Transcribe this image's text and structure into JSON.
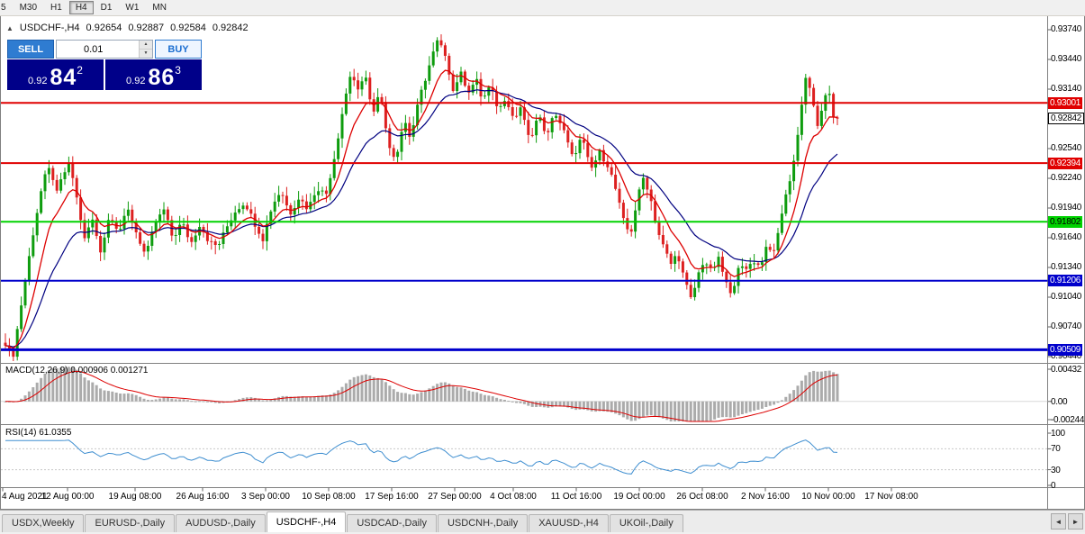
{
  "icons": {
    "collapse_arrow": "▲",
    "spin_up": "▲",
    "spin_down": "▼",
    "tab_prev": "◄",
    "tab_next": "►"
  },
  "toolbar": {
    "periods": [
      {
        "label": "5",
        "active": false
      },
      {
        "label": "M30",
        "active": false
      },
      {
        "label": "H1",
        "active": false
      },
      {
        "label": "H4",
        "active": true
      },
      {
        "label": "D1",
        "active": false
      },
      {
        "label": "W1",
        "active": false
      },
      {
        "label": "MN",
        "active": false
      }
    ]
  },
  "chart": {
    "symbol_period": "USDCHF-,H4",
    "ohlc": {
      "open": "0.92654",
      "high": "0.92887",
      "low": "0.92584",
      "close": "0.92842"
    },
    "current_price": {
      "label": "0.92842",
      "value": 0.92842
    },
    "y_ticks": [
      "0.93740",
      "0.93440",
      "0.93140",
      "0.92840",
      "0.92540",
      "0.92240",
      "0.91940",
      "0.91640",
      "0.91340",
      "0.91040",
      "0.90740",
      "0.90440"
    ],
    "hlines": [
      {
        "label": "0.93001",
        "value": 0.93001,
        "color": "#e00000",
        "text_color": "#ffffff",
        "width": 2
      },
      {
        "label": "0.92394",
        "value": 0.92394,
        "color": "#e00000",
        "text_color": "#ffffff",
        "width": 2
      },
      {
        "label": "0.91802",
        "value": 0.91802,
        "color": "#00d200",
        "text_color": "#000000",
        "width": 2
      },
      {
        "label": "0.91206",
        "value": 0.91206,
        "color": "#0000cc",
        "text_color": "#ffffff",
        "width": 2
      },
      {
        "label": "0.90509",
        "value": 0.90509,
        "color": "#0000cc",
        "text_color": "#ffffff",
        "width": 3
      }
    ],
    "x_labels": [
      "4 Aug 2021",
      "12 Aug 00:00",
      "19 Aug 08:00",
      "26 Aug 16:00",
      "3 Sep 00:00",
      "10 Sep 08:00",
      "17 Sep 16:00",
      "27 Sep 00:00",
      "4 Oct 08:00",
      "11 Oct 16:00",
      "19 Oct 00:00",
      "26 Oct 08:00",
      "2 Nov 16:00",
      "10 Nov 00:00",
      "17 Nov 08:00"
    ]
  },
  "trade": {
    "sell_label": "SELL",
    "buy_label": "BUY",
    "lot": "0.01",
    "sell_price": {
      "prefix": "0.92",
      "big": "84",
      "sup": "2"
    },
    "buy_price": {
      "prefix": "0.92",
      "big": "86",
      "sup": "3"
    }
  },
  "macd": {
    "label": "MACD(12,26,9) 0.000906 0.001271",
    "axis": [
      {
        "label": "0.00432",
        "value": 0.00432
      },
      {
        "label": "0.00",
        "value": 0
      },
      {
        "label": "-0.00244",
        "value": -0.00244
      }
    ]
  },
  "rsi": {
    "label": "RSI(14) 61.0355",
    "axis": [
      {
        "label": "100",
        "value": 100
      },
      {
        "label": "70",
        "value": 70
      },
      {
        "label": "30",
        "value": 30
      },
      {
        "label": "0",
        "value": 0
      }
    ]
  },
  "tabs": {
    "items": [
      {
        "label": "USDX,Weekly",
        "active": false
      },
      {
        "label": "EURUSD-,Daily",
        "active": false
      },
      {
        "label": "AUDUSD-,Daily",
        "active": false
      },
      {
        "label": "USDCHF-,H4",
        "active": true
      },
      {
        "label": "USDCAD-,Daily",
        "active": false
      },
      {
        "label": "USDCNH-,Daily",
        "active": false
      },
      {
        "label": "XAUUSD-,H4",
        "active": false
      },
      {
        "label": "UKOil-,Daily",
        "active": false
      }
    ]
  },
  "chart_data": {
    "type": "candlestick",
    "symbol": "USDCHF-",
    "timeframe": "H4",
    "title": "USDCHF-,H4",
    "y_axis": {
      "min": 0.9044,
      "max": 0.9374,
      "tick_step": 0.003
    },
    "current_bar": {
      "open": 0.92654,
      "high": 0.92887,
      "low": 0.92584,
      "close": 0.92842
    },
    "horizontal_levels": [
      0.93001,
      0.92394,
      0.91802,
      0.91206,
      0.90509
    ],
    "indicators": [
      {
        "name": "MACD",
        "params": [
          12,
          26,
          9
        ],
        "current_values": [
          0.000906,
          0.001271
        ],
        "axis_range": [
          -0.00244,
          0.00432
        ]
      },
      {
        "name": "RSI",
        "params": [
          14
        ],
        "current_value": 61.0355,
        "axis_range": [
          0,
          100
        ],
        "levels": [
          30,
          70
        ]
      }
    ],
    "moving_averages": [
      {
        "color": "#dd0000",
        "speed": "fast"
      },
      {
        "color": "#000080",
        "speed": "slow"
      }
    ],
    "price_pivots": [
      [
        6,
        0.9058
      ],
      [
        14,
        0.9042
      ],
      [
        26,
        0.911
      ],
      [
        38,
        0.9175
      ],
      [
        48,
        0.9222
      ],
      [
        56,
        0.9235
      ],
      [
        63,
        0.9208
      ],
      [
        70,
        0.9228
      ],
      [
        78,
        0.9238
      ],
      [
        86,
        0.92
      ],
      [
        94,
        0.9162
      ],
      [
        102,
        0.9184
      ],
      [
        112,
        0.915
      ],
      [
        122,
        0.9188
      ],
      [
        132,
        0.917
      ],
      [
        142,
        0.9192
      ],
      [
        152,
        0.9168
      ],
      [
        162,
        0.9145
      ],
      [
        172,
        0.9178
      ],
      [
        182,
        0.9192
      ],
      [
        192,
        0.9163
      ],
      [
        202,
        0.918
      ],
      [
        212,
        0.9158
      ],
      [
        222,
        0.9178
      ],
      [
        232,
        0.916
      ],
      [
        242,
        0.9155
      ],
      [
        252,
        0.9175
      ],
      [
        262,
        0.9192
      ],
      [
        272,
        0.92
      ],
      [
        282,
        0.918
      ],
      [
        292,
        0.9163
      ],
      [
        302,
        0.9196
      ],
      [
        312,
        0.9212
      ],
      [
        322,
        0.9188
      ],
      [
        332,
        0.9205
      ],
      [
        342,
        0.9193
      ],
      [
        352,
        0.9215
      ],
      [
        362,
        0.9207
      ],
      [
        372,
        0.9248
      ],
      [
        382,
        0.93
      ],
      [
        390,
        0.9332
      ],
      [
        398,
        0.931
      ],
      [
        406,
        0.933
      ],
      [
        414,
        0.9286
      ],
      [
        422,
        0.9312
      ],
      [
        430,
        0.9262
      ],
      [
        440,
        0.9243
      ],
      [
        448,
        0.9282
      ],
      [
        456,
        0.9266
      ],
      [
        464,
        0.93
      ],
      [
        472,
        0.9322
      ],
      [
        480,
        0.9348
      ],
      [
        488,
        0.9366
      ],
      [
        496,
        0.9342
      ],
      [
        504,
        0.9312
      ],
      [
        512,
        0.9332
      ],
      [
        520,
        0.9306
      ],
      [
        528,
        0.9326
      ],
      [
        536,
        0.9302
      ],
      [
        546,
        0.9318
      ],
      [
        554,
        0.9292
      ],
      [
        562,
        0.9306
      ],
      [
        570,
        0.9282
      ],
      [
        578,
        0.9296
      ],
      [
        588,
        0.9262
      ],
      [
        598,
        0.9288
      ],
      [
        608,
        0.9266
      ],
      [
        616,
        0.9292
      ],
      [
        626,
        0.9272
      ],
      [
        636,
        0.9244
      ],
      [
        646,
        0.9266
      ],
      [
        656,
        0.9232
      ],
      [
        666,
        0.925
      ],
      [
        676,
        0.9236
      ],
      [
        684,
        0.9212
      ],
      [
        692,
        0.9182
      ],
      [
        700,
        0.9166
      ],
      [
        708,
        0.9204
      ],
      [
        715,
        0.9226
      ],
      [
        722,
        0.9206
      ],
      [
        730,
        0.9172
      ],
      [
        738,
        0.9152
      ],
      [
        746,
        0.9136
      ],
      [
        752,
        0.915
      ],
      [
        760,
        0.9122
      ],
      [
        768,
        0.91
      ],
      [
        775,
        0.9126
      ],
      [
        782,
        0.9142
      ],
      [
        790,
        0.913
      ],
      [
        798,
        0.9142
      ],
      [
        806,
        0.912
      ],
      [
        812,
        0.9104
      ],
      [
        820,
        0.9136
      ],
      [
        828,
        0.913
      ],
      [
        836,
        0.9142
      ],
      [
        844,
        0.9134
      ],
      [
        852,
        0.9158
      ],
      [
        860,
        0.9148
      ],
      [
        868,
        0.9188
      ],
      [
        876,
        0.9218
      ],
      [
        884,
        0.9252
      ],
      [
        890,
        0.9298
      ],
      [
        896,
        0.9332
      ],
      [
        902,
        0.9302
      ],
      [
        908,
        0.9276
      ],
      [
        914,
        0.93
      ],
      [
        920,
        0.9312
      ],
      [
        926,
        0.9284
      ]
    ]
  }
}
